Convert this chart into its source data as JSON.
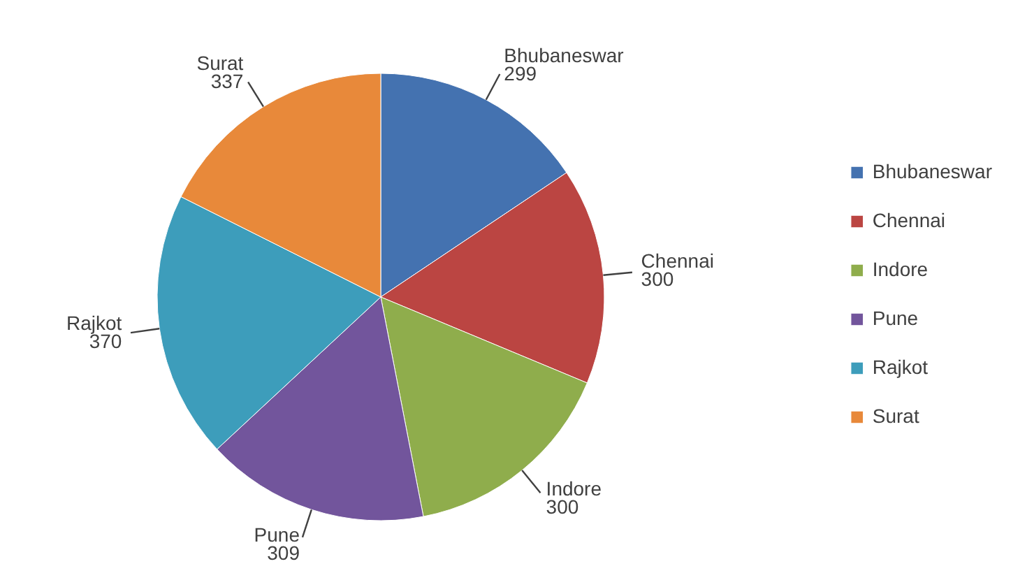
{
  "chart_data": {
    "type": "pie",
    "categories": [
      "Bhubaneswar",
      "Chennai",
      "Indore",
      "Pune",
      "Rajkot",
      "Surat"
    ],
    "values": [
      299,
      300,
      300,
      309,
      370,
      337
    ],
    "colors": [
      "#4472b0",
      "#bb4542",
      "#8fad4c",
      "#72559c",
      "#3d9dbb",
      "#e8893a"
    ],
    "data_labels": true,
    "legend": "right"
  }
}
